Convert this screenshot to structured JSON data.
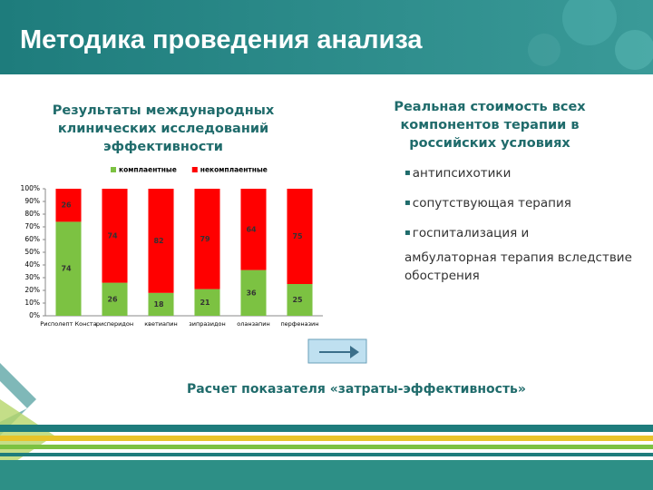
{
  "header": {
    "title": "Методика проведения анализа"
  },
  "left_heading": "Результаты международных клинических исследований эффективности",
  "chart_data": {
    "type": "stacked_bar",
    "categories": [
      "Рисполепт Конста",
      "рисперидон",
      "кветиапин",
      "зипразидон",
      "оланзапин",
      "перфеназин"
    ],
    "series": [
      {
        "name": "комплаентные",
        "color": "#7cc242",
        "values": [
          74,
          26,
          18,
          21,
          36,
          25
        ]
      },
      {
        "name": "некомплаентные",
        "color": "#ff0000",
        "values": [
          26,
          74,
          82,
          79,
          64,
          75
        ]
      }
    ],
    "ylim": [
      0,
      100
    ],
    "yticks": [
      {
        "value": 0,
        "label": "0%"
      },
      {
        "value": 10,
        "label": "10%"
      },
      {
        "value": 20,
        "label": "20%"
      },
      {
        "value": 30,
        "label": "30%"
      },
      {
        "value": 40,
        "label": "40%"
      },
      {
        "value": 50,
        "label": "50%"
      },
      {
        "value": 60,
        "label": "60%"
      },
      {
        "value": 70,
        "label": "70%"
      },
      {
        "value": 80,
        "label": "80%"
      },
      {
        "value": 90,
        "label": "90%"
      },
      {
        "value": 100,
        "label": "100%"
      }
    ],
    "legend": "top"
  },
  "right_heading": "Реальная стоимость всех компонентов терапии в российских условиях",
  "bullets": [
    "антипсихотики",
    "сопутствующая терапия",
    "госпитализация и"
  ],
  "continuation": "амбулаторная терапия вследствие обострения",
  "conclusion": "Расчет показателя «затраты-эффективность»"
}
